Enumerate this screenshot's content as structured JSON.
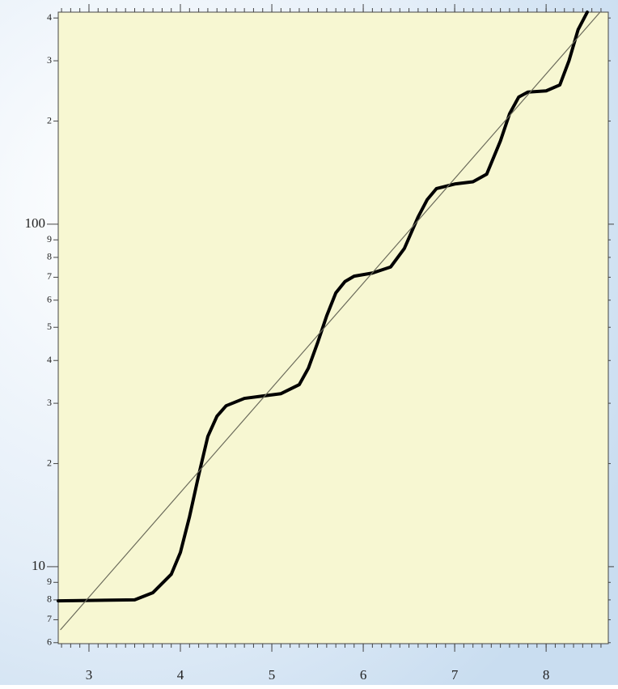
{
  "chart_data": {
    "type": "line",
    "ylog": true,
    "xlim": [
      2.664,
      8.68
    ],
    "xticks": [
      3,
      4,
      5,
      6,
      7,
      8
    ],
    "ylim": [
      5.96,
      416
    ],
    "yticks": [
      {
        "value": 6,
        "label": "6"
      },
      {
        "value": 7,
        "label": "7"
      },
      {
        "value": 8,
        "label": "8"
      },
      {
        "value": 9,
        "label": "9"
      },
      10,
      {
        "value": 20,
        "label": "2"
      },
      {
        "value": 30,
        "label": "3"
      },
      {
        "value": 40,
        "label": "4"
      },
      {
        "value": 50,
        "label": "5"
      },
      {
        "value": 60,
        "label": "6"
      },
      {
        "value": 70,
        "label": "7"
      },
      {
        "value": 80,
        "label": "8"
      },
      {
        "value": 90,
        "label": "9"
      },
      100,
      {
        "value": 200,
        "label": "2"
      },
      {
        "value": 300,
        "label": "3"
      },
      {
        "value": 400,
        "label": "4"
      }
    ],
    "series": [
      {
        "color": "#000000",
        "x": [
          2.664,
          3.5,
          3.7,
          3.9,
          4.0,
          4.1,
          4.2,
          4.3,
          4.4,
          4.5,
          4.7,
          4.9,
          5.1,
          5.3,
          5.4,
          5.5,
          5.6,
          5.7,
          5.8,
          5.9,
          6.1,
          6.3,
          6.45,
          6.6,
          6.7,
          6.8,
          7.0,
          7.2,
          7.35,
          7.5,
          7.6,
          7.7,
          7.8,
          8.0,
          8.15,
          8.25,
          8.35,
          8.45
        ],
        "values": [
          7.95,
          8.0,
          8.4,
          9.5,
          11,
          14,
          18.5,
          24,
          27.5,
          29.5,
          31,
          31.5,
          32,
          34,
          38,
          45,
          54,
          63,
          68,
          70.5,
          72,
          75,
          85,
          105,
          118,
          127,
          131,
          133,
          140,
          175,
          210,
          235,
          243,
          245,
          255,
          300,
          370,
          416
        ]
      },
      {
        "color": "#6a6a5a",
        "x": [
          2.69,
          8.59
        ],
        "values": [
          6.55,
          416
        ]
      }
    ]
  }
}
